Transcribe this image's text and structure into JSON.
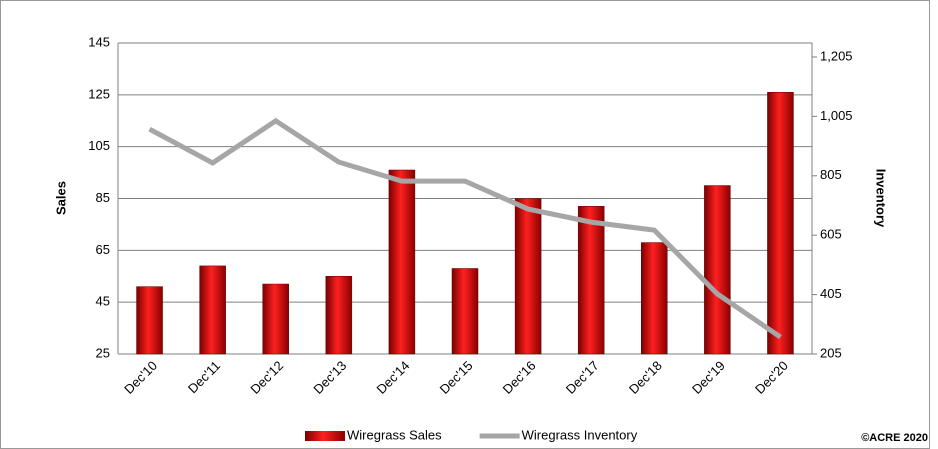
{
  "chart_data": {
    "type": "bar-line",
    "categories": [
      "Dec'10",
      "Dec'11",
      "Dec'12",
      "Dec'13",
      "Dec'14",
      "Dec'15",
      "Dec'16",
      "Dec'17",
      "Dec'18",
      "Dec'19",
      "Dec'20"
    ],
    "series": [
      {
        "name": "Wiregrass Sales",
        "color": "#c00000",
        "type": "bar",
        "axis": "y",
        "values": [
          51,
          59,
          52,
          55,
          96,
          58,
          85,
          82,
          68,
          90,
          126
        ]
      },
      {
        "name": "Wiregrass Inventory",
        "color": "#a6a6a6",
        "type": "line",
        "axis": "y2",
        "values": [
          962,
          848,
          990,
          851,
          787,
          787,
          693,
          649,
          622,
          407,
          262
        ]
      }
    ],
    "ylabel": "Sales",
    "y2label": "Inventory",
    "ylim": [
      25,
      145
    ],
    "yticks": [
      25,
      45,
      65,
      85,
      105,
      125,
      145
    ],
    "y2lim": [
      205,
      1252
    ],
    "y2ticks": [
      205,
      405,
      605,
      805,
      {
        "value": 1005,
        "label": "1,005"
      },
      {
        "value": 1205,
        "label": "1,205"
      }
    ],
    "grid": true,
    "legend": "bottom",
    "annotation": "©ACRE 2020"
  }
}
